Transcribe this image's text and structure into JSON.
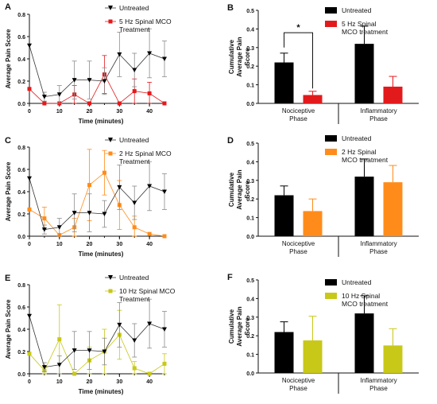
{
  "colors": {
    "axis": "#111111",
    "untreated": "#000000",
    "red": "#e31a1c",
    "orange": "#ff8c1a",
    "yellow": "#c8c819",
    "error_gray": "#8a8a8a"
  },
  "chart_data": [
    {
      "panel": "A",
      "type": "line",
      "xlabel": "Time (minutes)",
      "ylabel": "Average Pain Score",
      "xlim": [
        0,
        45
      ],
      "ylim": [
        0,
        0.8
      ],
      "x_ticks": [
        0,
        10,
        20,
        30,
        40
      ],
      "y_ticks": [
        "0.0",
        "0.2",
        "0.4",
        "0.6",
        "0.8"
      ],
      "x": [
        0,
        5,
        10,
        15,
        20,
        25,
        30,
        35,
        40,
        45
      ],
      "series": [
        {
          "name": "Untreated",
          "marker": "triangle-down",
          "color_key": "untreated",
          "values": [
            0.52,
            0.06,
            0.08,
            0.21,
            0.21,
            0.2,
            0.44,
            0.3,
            0.45,
            0.4
          ],
          "errors": [
            0.0,
            0.04,
            0.08,
            0.17,
            0.17,
            0.12,
            0.2,
            0.15,
            0.22,
            0.16
          ]
        },
        {
          "name": "5 Hz Spinal MCO Treatment",
          "marker": "square",
          "color_key": "red",
          "values": [
            0.13,
            0.0,
            0.0,
            0.08,
            0.0,
            0.26,
            0.0,
            0.11,
            0.09,
            0.0
          ],
          "errors": [
            0.0,
            0.0,
            0.0,
            0.08,
            0.0,
            0.17,
            0.0,
            0.11,
            0.1,
            0.0
          ]
        }
      ]
    },
    {
      "panel": "B",
      "type": "bar",
      "ylabel": "Cumulative Average Pain Score",
      "ylim": [
        0,
        0.5
      ],
      "y_ticks": [
        "0.0",
        "0.1",
        "0.2",
        "0.3",
        "0.4",
        "0.5"
      ],
      "categories": [
        "Nociceptive Phase",
        "Inflammatory Phase"
      ],
      "series": [
        {
          "name": "Untreated",
          "color_key": "untreated",
          "values": [
            0.22,
            0.32
          ],
          "errors": [
            0.05,
            0.095
          ]
        },
        {
          "name": "5 Hz Spinal MCO treatment",
          "color_key": "red",
          "values": [
            0.045,
            0.09
          ],
          "errors": [
            0.02,
            0.055
          ]
        }
      ],
      "annotation": "*"
    },
    {
      "panel": "C",
      "type": "line",
      "xlabel": "Time (minutes)",
      "ylabel": "Average Pain Score",
      "xlim": [
        0,
        45
      ],
      "ylim": [
        0,
        0.8
      ],
      "x_ticks": [
        0,
        10,
        20,
        30,
        40
      ],
      "y_ticks": [
        "0.0",
        "0.2",
        "0.4",
        "0.6",
        "0.8"
      ],
      "x": [
        0,
        5,
        10,
        15,
        20,
        25,
        30,
        35,
        40,
        45
      ],
      "series": [
        {
          "name": "Untreated",
          "marker": "triangle-down",
          "color_key": "untreated",
          "values": [
            0.52,
            0.06,
            0.08,
            0.21,
            0.21,
            0.2,
            0.44,
            0.3,
            0.45,
            0.4
          ],
          "errors": [
            0.0,
            0.04,
            0.08,
            0.17,
            0.17,
            0.12,
            0.2,
            0.15,
            0.22,
            0.16
          ]
        },
        {
          "name": "2 Hz Spinal MCO Treatment",
          "marker": "square",
          "color_key": "orange",
          "values": [
            0.24,
            0.16,
            0.01,
            0.08,
            0.46,
            0.57,
            0.28,
            0.08,
            0.02,
            0.0
          ],
          "errors": [
            0.0,
            0.1,
            0.0,
            0.08,
            0.32,
            0.2,
            0.22,
            0.1,
            0.0,
            0.0
          ]
        }
      ]
    },
    {
      "panel": "D",
      "type": "bar",
      "ylabel": "Cumulative Average Pain Score",
      "ylim": [
        0,
        0.5
      ],
      "y_ticks": [
        "0.0",
        "0.1",
        "0.2",
        "0.3",
        "0.4",
        "0.5"
      ],
      "categories": [
        "Nociceptive Phase",
        "Inflammatory Phase"
      ],
      "series": [
        {
          "name": "Untreated",
          "color_key": "untreated",
          "values": [
            0.22,
            0.32
          ],
          "errors": [
            0.05,
            0.095
          ]
        },
        {
          "name": "2 Hz Spinal MCO treatment",
          "color_key": "orange",
          "values": [
            0.135,
            0.29
          ],
          "errors": [
            0.065,
            0.09
          ]
        }
      ]
    },
    {
      "panel": "E",
      "type": "line",
      "xlabel": "Time (minutes)",
      "ylabel": "Average Pain Score",
      "xlim": [
        0,
        45
      ],
      "ylim": [
        0,
        0.8
      ],
      "x_ticks": [
        0,
        10,
        20,
        30,
        40
      ],
      "y_ticks": [
        "0.0",
        "0.2",
        "0.4",
        "0.6",
        "0.8"
      ],
      "x": [
        0,
        5,
        10,
        15,
        20,
        25,
        30,
        35,
        40,
        45
      ],
      "series": [
        {
          "name": "Untreated",
          "marker": "triangle-down",
          "color_key": "untreated",
          "values": [
            0.52,
            0.06,
            0.08,
            0.21,
            0.21,
            0.2,
            0.44,
            0.3,
            0.45,
            0.4
          ],
          "errors": [
            0.0,
            0.04,
            0.08,
            0.17,
            0.17,
            0.12,
            0.2,
            0.15,
            0.22,
            0.16
          ]
        },
        {
          "name": "10 Hz Spinal MCO Treatment",
          "marker": "square",
          "color_key": "yellow",
          "values": [
            0.18,
            0.03,
            0.31,
            0.0,
            0.12,
            0.2,
            0.35,
            0.05,
            0.0,
            0.09
          ],
          "errors": [
            0.0,
            0.03,
            0.31,
            0.0,
            0.12,
            0.2,
            0.22,
            0.06,
            0.0,
            0.09
          ]
        }
      ]
    },
    {
      "panel": "F",
      "type": "bar",
      "ylabel": "Cumulative Average Pain Score",
      "ylim": [
        0,
        0.5
      ],
      "y_ticks": [
        "0.0",
        "0.1",
        "0.2",
        "0.3",
        "0.4",
        "0.5"
      ],
      "categories": [
        "Nociceptive Phase",
        "Inflammatory Phase"
      ],
      "series": [
        {
          "name": "Untreated",
          "color_key": "untreated",
          "values": [
            0.22,
            0.32
          ],
          "errors": [
            0.055,
            0.095
          ]
        },
        {
          "name": "10 Hz Spinal MCO treatment",
          "color_key": "yellow",
          "values": [
            0.175,
            0.148
          ],
          "errors": [
            0.13,
            0.09
          ]
        }
      ]
    }
  ]
}
